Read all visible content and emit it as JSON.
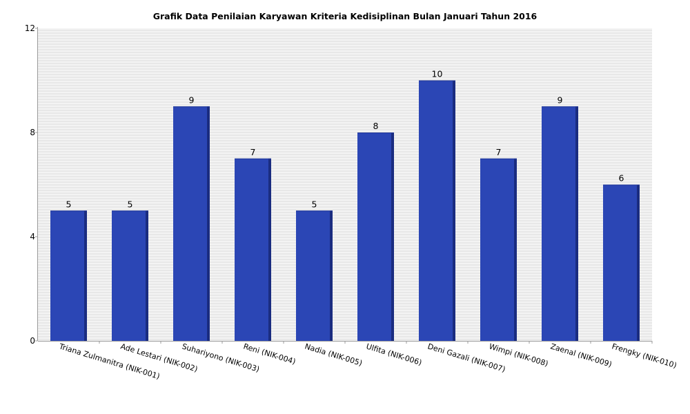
{
  "chart_data": {
    "type": "bar",
    "title": "Grafik Data Penilaian Karyawan Kriteria Kedisiplinan Bulan Januari Tahun 2016",
    "xlabel": "",
    "ylabel": "",
    "categories": [
      "Triana Zulmanitra (NIK-001)",
      "Ade Lestari (NIK-002)",
      "Suhariyono (NIK-003)",
      "Reni (NIK-004)",
      "Nadia (NIK-005)",
      "Ulfita (NIK-006)",
      "Deni Gazali (NIK-007)",
      "Wimpi (NIK-008)",
      "Zaenal (NIK-009)",
      "Frengky (NIK-010)"
    ],
    "values": [
      5,
      5,
      9,
      7,
      5,
      8,
      10,
      7,
      9,
      6
    ],
    "ylim": [
      0,
      12
    ],
    "yticks": [
      0,
      4,
      8,
      12
    ],
    "grid": true,
    "data_labels": true,
    "bar_color": "#2b46b5",
    "bar_shade_color": "#1a2c80",
    "plot_background": "#f3f3f3",
    "grid_color": "#dcdcdc"
  }
}
